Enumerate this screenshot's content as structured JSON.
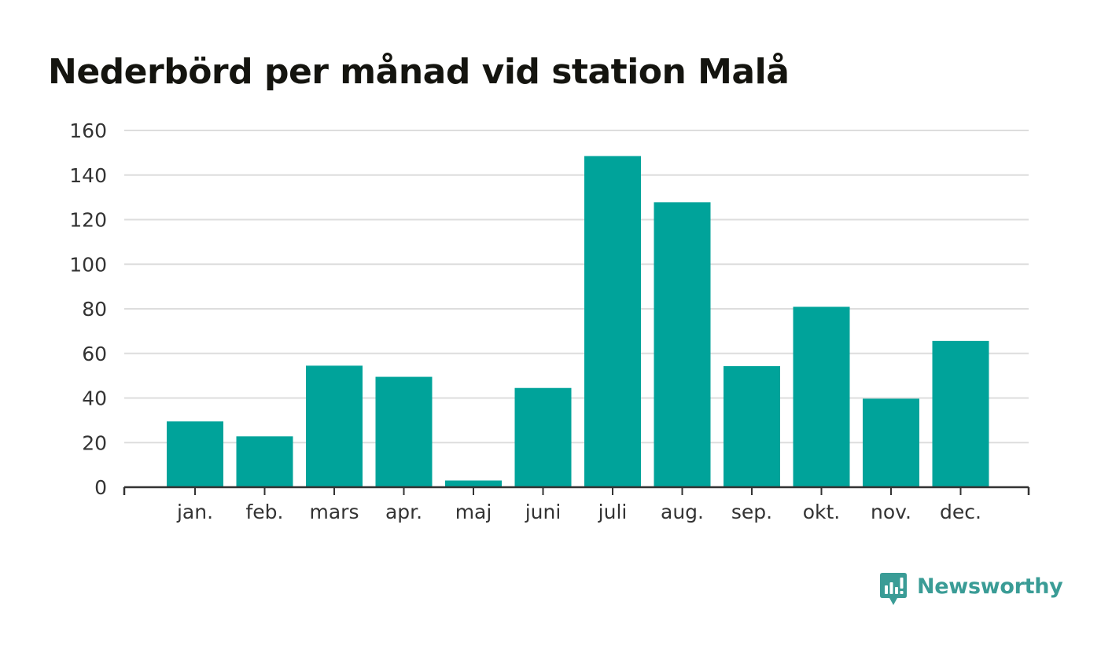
{
  "chart_data": {
    "type": "bar",
    "title": "Nederbörd per månad vid station Malå",
    "categories": [
      "jan.",
      "feb.",
      "mars",
      "apr.",
      "maj",
      "juni",
      "juli",
      "aug.",
      "sep.",
      "okt.",
      "nov.",
      "dec."
    ],
    "values": [
      29.5,
      22.8,
      54.5,
      49.5,
      3.0,
      44.5,
      148.5,
      127.8,
      54.3,
      80.9,
      39.7,
      65.6
    ],
    "yticks": [
      "0",
      "20",
      "40",
      "60",
      "80",
      "100",
      "120",
      "140",
      "160"
    ],
    "ylim": [
      0,
      160
    ],
    "xlabel": "",
    "ylabel": "",
    "grid": true,
    "legend": "none",
    "bar_color": "#00a39a",
    "grid_color": "#dddddd",
    "axis_color": "#333333"
  },
  "brand": {
    "name": "Newsworthy",
    "icon": "newsworthy-logo-icon",
    "color": "#3a9c96"
  }
}
